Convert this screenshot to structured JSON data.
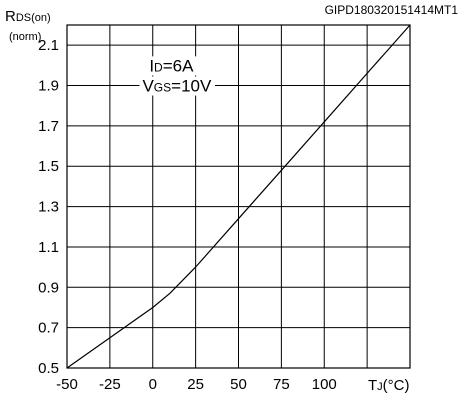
{
  "chart_data": {
    "type": "line",
    "figure_id": "GIPD180320151414MT1",
    "ylabel": {
      "main": "R",
      "sub": "DS(on)",
      "unit": "(norm)"
    },
    "xlabel": {
      "main": "T",
      "sub": "J",
      "unit": "(°C)"
    },
    "annotations": [
      {
        "main": "I",
        "sub": "D",
        "value": "=6A"
      },
      {
        "main": "V",
        "sub": "GS",
        "value": "=10V"
      }
    ],
    "xlim": [
      -50,
      150
    ],
    "ylim": [
      0.5,
      2.2
    ],
    "x_ticks": [
      -50,
      -25,
      0,
      25,
      50,
      75,
      100
    ],
    "x_tick_labels": [
      "-50",
      "-25",
      "0",
      "25",
      "50",
      "75",
      "100"
    ],
    "y_ticks": [
      0.5,
      0.7,
      0.9,
      1.1,
      1.3,
      1.5,
      1.7,
      1.9,
      2.1
    ],
    "y_tick_labels": [
      "0.5",
      "0.7",
      "0.9",
      "1.1",
      "1.3",
      "1.5",
      "1.7",
      "1.9",
      "2.1"
    ],
    "grid": true,
    "series": [
      {
        "x": [
          -50,
          -25,
          0,
          10,
          25,
          50,
          75,
          100,
          125,
          150
        ],
        "y": [
          0.5,
          0.65,
          0.8,
          0.87,
          1.0,
          1.24,
          1.48,
          1.72,
          1.96,
          2.2
        ]
      }
    ]
  }
}
